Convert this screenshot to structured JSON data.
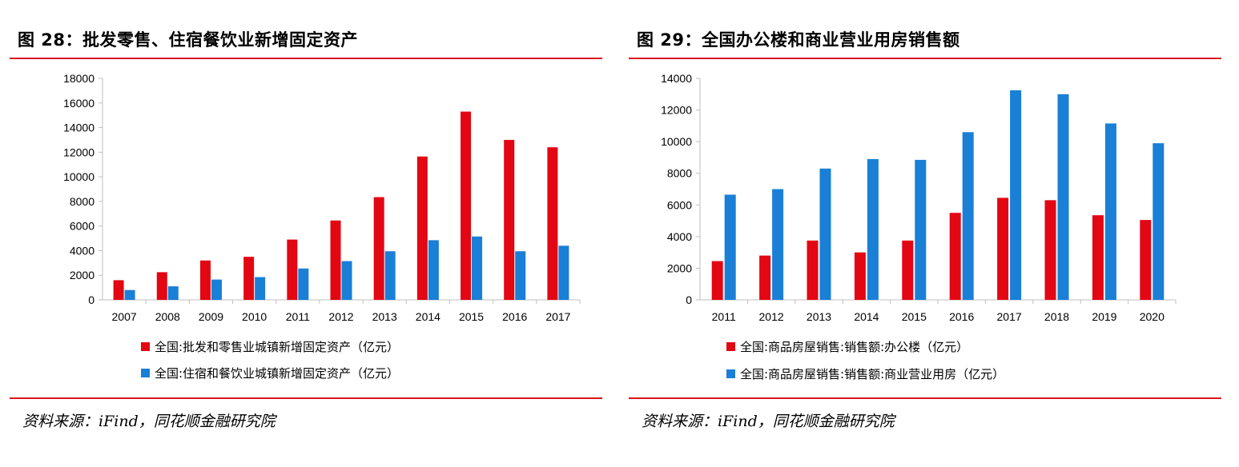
{
  "left": {
    "title": "图 28：批发零售、住宿餐饮业新增固定资产",
    "source": "资料来源：iFind，同花顺金融研究院"
  },
  "right": {
    "title": "图 29：全国办公楼和商业营业用房销售额",
    "source": "资料来源：iFind，同花顺金融研究院"
  },
  "colors": {
    "red": "#e30613",
    "blue": "#1a7fd6",
    "rule": "#d9141e",
    "axis": "#bfbfbf"
  },
  "chart_data": [
    {
      "type": "bar",
      "categories": [
        "2007",
        "2008",
        "2009",
        "2010",
        "2011",
        "2012",
        "2013",
        "2014",
        "2015",
        "2016",
        "2017"
      ],
      "series": [
        {
          "name": "全国:批发和零售业城镇新增固定资产（亿元）",
          "color": "#e30613",
          "values": [
            1600,
            2250,
            3200,
            3500,
            4900,
            6450,
            8350,
            11650,
            15300,
            13000,
            12400
          ]
        },
        {
          "name": "全国:住宿和餐饮业城镇新增固定资产（亿元）",
          "color": "#1a7fd6",
          "values": [
            800,
            1100,
            1650,
            1850,
            2550,
            3150,
            3950,
            4850,
            5150,
            3950,
            4400
          ]
        }
      ],
      "ylim": [
        0,
        18000
      ],
      "yticks": [
        "0",
        "2000",
        "4000",
        "6000",
        "8000",
        "10000",
        "12000",
        "14000",
        "16000",
        "18000"
      ],
      "legend": "bottom",
      "grid": false
    },
    {
      "type": "bar",
      "categories": [
        "2011",
        "2012",
        "2013",
        "2014",
        "2015",
        "2016",
        "2017",
        "2018",
        "2019",
        "2020"
      ],
      "series": [
        {
          "name": "全国:商品房屋销售:销售额:办公楼（亿元）",
          "color": "#e30613",
          "values": [
            2450,
            2800,
            3750,
            3000,
            3750,
            5500,
            6450,
            6300,
            5350,
            5050
          ]
        },
        {
          "name": "全国:商品房屋销售:销售额:商业营业用房（亿元）",
          "color": "#1a7fd6",
          "values": [
            6650,
            7000,
            8300,
            8900,
            8850,
            10600,
            13250,
            13000,
            11150,
            9900
          ]
        }
      ],
      "ylim": [
        0,
        14000
      ],
      "yticks": [
        "0",
        "2000",
        "4000",
        "6000",
        "8000",
        "10000",
        "12000",
        "14000"
      ],
      "legend": "bottom",
      "grid": false
    }
  ]
}
